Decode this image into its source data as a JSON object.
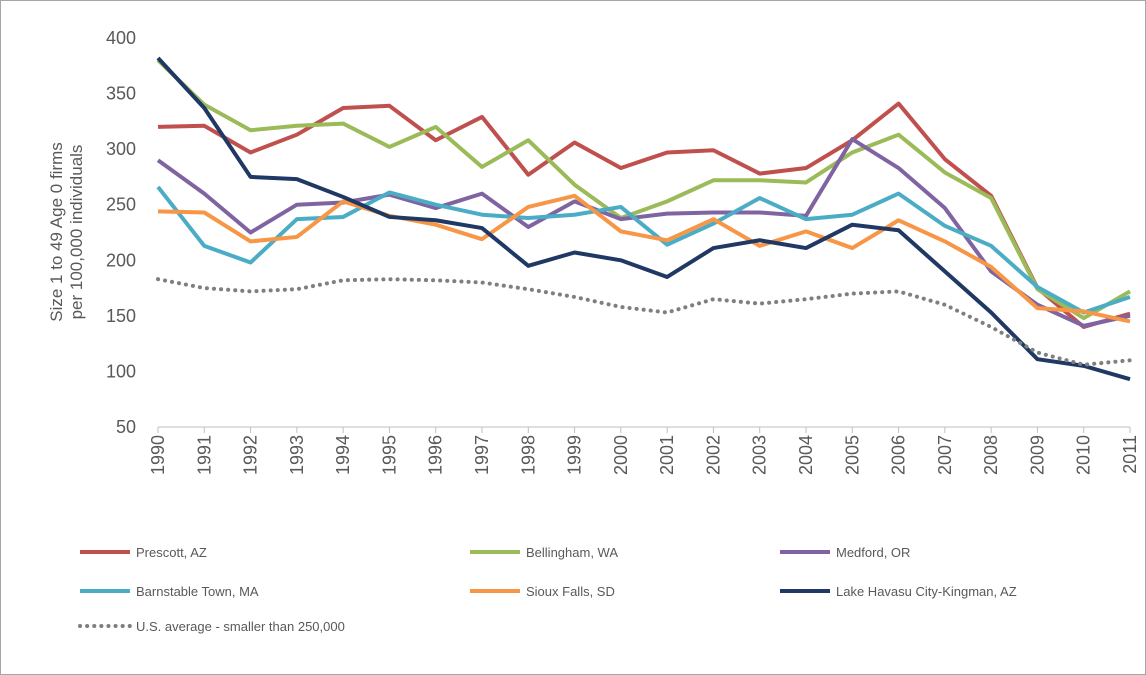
{
  "chart_data": {
    "type": "line",
    "ylabel": [
      "Size 1 to 49 Age 0 firms",
      "per 100,000 individuals"
    ],
    "categories": [
      "1990",
      "1991",
      "1992",
      "1993",
      "1994",
      "1995",
      "1996",
      "1997",
      "1998",
      "1999",
      "2000",
      "2001",
      "2002",
      "2003",
      "2004",
      "2005",
      "2006",
      "2007",
      "2008",
      "2009",
      "2010",
      "2011"
    ],
    "ylim": [
      50,
      400
    ],
    "yticks": [
      50,
      100,
      150,
      200,
      250,
      300,
      350,
      400
    ],
    "series": [
      {
        "name": "Prescott, AZ",
        "color": "#c0504d",
        "values": [
          320,
          321,
          297,
          313,
          337,
          339,
          308,
          329,
          277,
          306,
          283,
          297,
          299,
          278,
          283,
          308,
          341,
          291,
          258,
          175,
          140,
          152
        ]
      },
      {
        "name": "Bellingham, WA",
        "color": "#9bbb59",
        "values": [
          380,
          340,
          317,
          321,
          323,
          302,
          320,
          284,
          308,
          268,
          238,
          253,
          272,
          272,
          270,
          297,
          313,
          279,
          256,
          174,
          148,
          172
        ]
      },
      {
        "name": "Medford, OR",
        "color": "#8064a2",
        "values": [
          290,
          260,
          225,
          250,
          252,
          259,
          247,
          260,
          230,
          253,
          237,
          242,
          243,
          243,
          240,
          309,
          283,
          247,
          190,
          160,
          141,
          150
        ]
      },
      {
        "name": "Barnstable Town, MA",
        "color": "#4bacc6",
        "values": [
          266,
          213,
          198,
          237,
          239,
          261,
          250,
          241,
          238,
          241,
          248,
          214,
          233,
          256,
          237,
          241,
          260,
          231,
          213,
          176,
          153,
          167
        ]
      },
      {
        "name": "Sioux Falls, SD",
        "color": "#f79646",
        "values": [
          244,
          243,
          217,
          221,
          253,
          240,
          232,
          219,
          248,
          258,
          226,
          218,
          237,
          213,
          226,
          211,
          236,
          217,
          194,
          157,
          154,
          145
        ]
      },
      {
        "name": "Lake Havasu City-Kingman, AZ",
        "color": "#1f3864",
        "values": [
          382,
          337,
          275,
          273,
          257,
          239,
          236,
          229,
          195,
          207,
          200,
          185,
          211,
          218,
          211,
          232,
          227,
          190,
          153,
          111,
          105,
          93
        ]
      },
      {
        "name": "U.S. average - smaller than 250,000",
        "color": "#7f7f7f",
        "dashed": true,
        "values": [
          183,
          175,
          172,
          174,
          182,
          183,
          182,
          180,
          174,
          167,
          158,
          153,
          165,
          161,
          165,
          170,
          172,
          160,
          140,
          117,
          106,
          110
        ]
      }
    ]
  }
}
